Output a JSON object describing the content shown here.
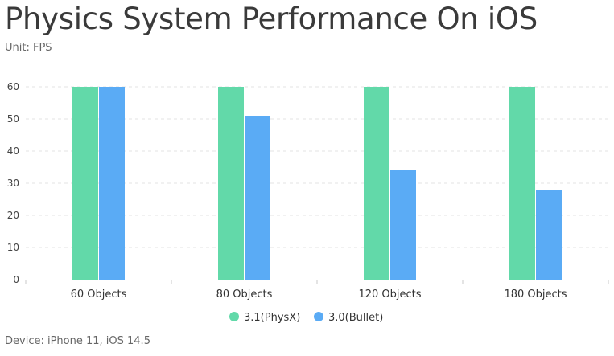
{
  "chart_data": {
    "type": "bar",
    "title": "Physics System Performance On iOS",
    "subtitle": "Unit: FPS",
    "footnote": "Device: iPhone 11, iOS 14.5",
    "categories": [
      "60 Objects",
      "80 Objects",
      "120 Objects",
      "180 Objects"
    ],
    "series": [
      {
        "name": "3.1(PhysX)",
        "color": "#62d9a9",
        "values": [
          60,
          60,
          60,
          60
        ]
      },
      {
        "name": "3.0(Bullet)",
        "color": "#5aabf5",
        "values": [
          60,
          51,
          34,
          28
        ]
      }
    ],
    "yticks": [
      0,
      10,
      20,
      30,
      40,
      50,
      60
    ],
    "ylim": [
      0,
      60
    ],
    "grid": true,
    "legend_position": "bottom-center"
  }
}
